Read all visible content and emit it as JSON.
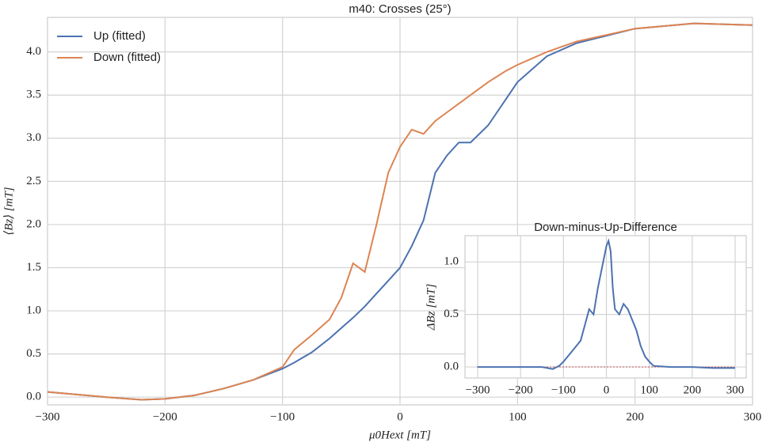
{
  "chart_data": [
    {
      "type": "line",
      "title": "m40: Crosses (25°)",
      "x_label": "μ0Hext [mT]",
      "y_label": "⟨Bz⟩ [mT]",
      "x": [
        -300,
        -250,
        -220,
        -200,
        -175,
        -150,
        -125,
        -100,
        -90,
        -75,
        -60,
        -50,
        -40,
        -30,
        -20,
        -10,
        0,
        10,
        20,
        30,
        40,
        50,
        60,
        75,
        90,
        100,
        125,
        150,
        200,
        250,
        300
      ],
      "series": [
        {
          "name": "Up (fitted)",
          "color": "#4c72b0",
          "values": [
            0.06,
            0.0,
            -0.03,
            -0.02,
            0.02,
            0.1,
            0.2,
            0.33,
            0.4,
            0.52,
            0.68,
            0.8,
            0.92,
            1.05,
            1.2,
            1.35,
            1.5,
            1.75,
            2.05,
            2.6,
            2.8,
            2.95,
            2.95,
            3.15,
            3.45,
            3.65,
            3.95,
            4.1,
            4.27,
            4.33,
            4.31
          ]
        },
        {
          "name": "Down (fitted)",
          "color": "#dd8452",
          "values": [
            0.06,
            0.0,
            -0.03,
            -0.02,
            0.02,
            0.1,
            0.2,
            0.35,
            0.55,
            0.72,
            0.9,
            1.15,
            1.55,
            1.45,
            2.0,
            2.6,
            2.9,
            3.1,
            3.05,
            3.2,
            3.3,
            3.4,
            3.5,
            3.65,
            3.78,
            3.85,
            4.0,
            4.12,
            4.27,
            4.33,
            4.31
          ]
        }
      ],
      "xlim": [
        -300,
        300
      ],
      "xticks": [
        {
          "value": -300,
          "label": "−300"
        },
        {
          "value": -200,
          "label": "−200"
        },
        {
          "value": -100,
          "label": "−100"
        },
        0,
        100,
        200,
        300
      ],
      "ylim": [
        -0.09,
        4.4
      ],
      "yticks": [
        {
          "value": 0,
          "label": "0.0"
        },
        0.5,
        {
          "value": 1,
          "label": "1.0"
        },
        1.5,
        {
          "value": 2,
          "label": "2.0"
        },
        2.5,
        {
          "value": 3,
          "label": "3.0"
        },
        3.5,
        {
          "value": 4,
          "label": "4.0"
        }
      ],
      "grid": true,
      "legend": "upper left"
    },
    {
      "type": "line",
      "title": "Down-minus-Up-Difference",
      "y_label": "ΔBz [mT]",
      "x": [
        -300,
        -250,
        -200,
        -150,
        -125,
        -110,
        -100,
        -80,
        -60,
        -50,
        -40,
        -30,
        -20,
        -10,
        0,
        5,
        10,
        15,
        20,
        30,
        40,
        50,
        60,
        70,
        80,
        90,
        100,
        110,
        150,
        200,
        250,
        300
      ],
      "series": [
        {
          "color": "#4c72b0",
          "values": [
            0,
            0,
            0,
            0,
            -0.02,
            0.01,
            0.05,
            0.15,
            0.25,
            0.4,
            0.55,
            0.5,
            0.75,
            0.95,
            1.15,
            1.2,
            1.1,
            0.75,
            0.55,
            0.5,
            0.6,
            0.55,
            0.45,
            0.35,
            0.2,
            0.1,
            0.05,
            0.01,
            0,
            0,
            -0.01,
            -0.01
          ]
        }
      ],
      "xlim": [
        -329.5,
        325.8
      ],
      "xticks": [
        {
          "value": -300,
          "label": "−300"
        },
        {
          "value": -200,
          "label": "−200"
        },
        {
          "value": -100,
          "label": "−100"
        },
        0,
        100,
        200,
        300
      ],
      "ylim": [
        -0.105,
        1.25
      ],
      "yticks": [
        {
          "value": 0,
          "label": "0.0"
        },
        0.5,
        {
          "value": 1,
          "label": "1.0"
        }
      ],
      "grid": true
    }
  ]
}
